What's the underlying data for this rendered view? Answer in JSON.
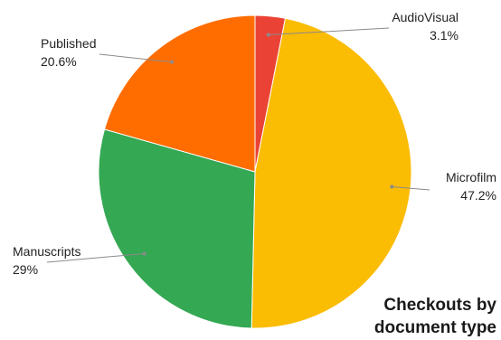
{
  "chart_data": {
    "type": "pie",
    "title_lines": [
      "Checkouts by",
      "document type"
    ],
    "legend": "none",
    "slices": [
      {
        "label": "AudioVisual",
        "value": 3.1,
        "value_label": "3.1%",
        "color": "#ea4335"
      },
      {
        "label": "Microfilm",
        "value": 47.2,
        "value_label": "47.2%",
        "color": "#fbbc04"
      },
      {
        "label": "Manuscripts",
        "value": 29,
        "value_label": "29%",
        "color": "#34a853"
      },
      {
        "label": "Published",
        "value": 20.6,
        "value_label": "20.6%",
        "color": "#ff6d01"
      }
    ]
  }
}
